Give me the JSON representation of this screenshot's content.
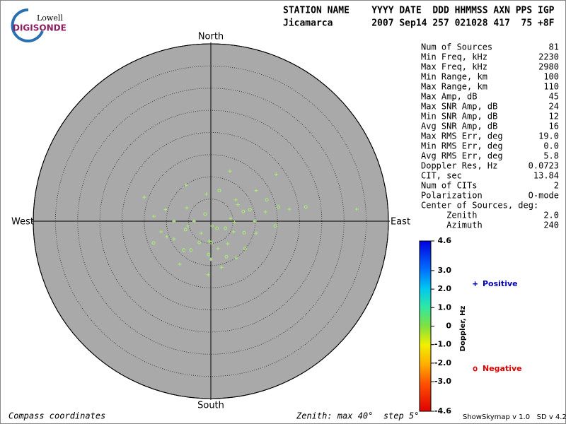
{
  "logo": {
    "top": "Lowell",
    "bottom": "DIGISONDE"
  },
  "header": {
    "labels": "STATION NAME    YYYY DATE  DDD HHMMSS AXN PPS IGP",
    "values": "Jicamarca       2007 Sep14 257 021028 417  75 +8F"
  },
  "stats": [
    [
      "Num of Sources",
      "81"
    ],
    [
      "Min Freq, kHz",
      "2230"
    ],
    [
      "Max Freq, kHz",
      "2980"
    ],
    [
      "Min Range, km",
      "100"
    ],
    [
      "Max Range, km",
      "110"
    ],
    [
      "Max Amp, dB",
      "45"
    ],
    [
      "Max SNR Amp, dB",
      "24"
    ],
    [
      "Min SNR Amp, dB",
      "12"
    ],
    [
      "Avg SNR Amp, dB",
      "16"
    ],
    [
      "Max RMS Err, deg",
      "19.0"
    ],
    [
      "Min RMS Err, deg",
      "0.0"
    ],
    [
      "Avg RMS Err, deg",
      "5.8"
    ],
    [
      "Doppler Res, Hz",
      "0.0723"
    ],
    [
      "CIT, sec",
      "13.84"
    ],
    [
      "Num of CITs",
      "2"
    ],
    [
      "Polarization",
      "O-mode"
    ],
    [
      "Center of Sources, deg:",
      ""
    ],
    [
      "     Zenith",
      "2.0"
    ],
    [
      "     Azimuth",
      "240"
    ]
  ],
  "footer": {
    "left": "Compass coordinates",
    "middle": "Zenith: max 40°  step 5°",
    "right": "ShowSkymap v 1.0   SD v 4.2"
  },
  "chart_data": {
    "type": "skymap",
    "directions": {
      "north": "North",
      "south": "South",
      "east": "East",
      "west": "West"
    },
    "xlim": [
      -40,
      40
    ],
    "ylim": [
      -40,
      40
    ],
    "rings": [
      5,
      10,
      15,
      20,
      25,
      30,
      35,
      40
    ],
    "series": [
      {
        "name": "Positive",
        "marker": "+",
        "color": "#a8f070",
        "legend_color": "#0000c0",
        "x": [
          4.3,
          14.7,
          -5.6,
          -1.0,
          10.2,
          -15.0,
          5.6,
          6.1,
          12.3,
          17.7,
          32.9,
          -10.2,
          -5.4,
          -12.8,
          4.5,
          -3.8,
          -8.3,
          9.9,
          5.3,
          0.3,
          5.1,
          10.2,
          -5.1,
          -11.2,
          -9.9,
          -8.3,
          -2.2,
          -0.3,
          3.8,
          1.6,
          5.7,
          -7.0,
          0.0,
          2.4,
          -0.6
        ],
        "values": [
          11.3,
          10.6,
          8.1,
          6.1,
          6.9,
          5.4,
          4.8,
          3.7,
          2.1,
          2.7,
          2.7,
          2.6,
          3.0,
          1.1,
          0.6,
          0.0,
          0.0,
          0.0,
          -0.2,
          -1.1,
          -2.4,
          -2.7,
          -1.1,
          -2.4,
          -3.5,
          -4.0,
          -2.7,
          -4.5,
          -5.1,
          -6.2,
          -8.3,
          -9.7,
          -8.6,
          -10.4,
          -12.1
        ]
      },
      {
        "name": "Negative",
        "marker": "o",
        "color": "#a8f070",
        "legend_color": "#e00000",
        "x": [
          1.9,
          12.6,
          8.8,
          7.3,
          15.2,
          21.4,
          -1.3,
          1.4,
          3.3,
          7.5,
          14.5,
          -5.7,
          -12.9,
          -2.6,
          0.0,
          7.7,
          -6.1,
          -4.5,
          -0.5,
          3.5
        ],
        "values": [
          6.9,
          4.8,
          2.6,
          2.2,
          3.2,
          3.2,
          1.6,
          -1.6,
          -1.6,
          -2.6,
          -1.1,
          -1.9,
          -4.9,
          -4.8,
          -4.8,
          -6.2,
          -6.5,
          -6.5,
          -7.5,
          -8.0
        ]
      }
    ],
    "colorbar": {
      "label": "Doppler, Hz",
      "lim": [
        -4.6,
        4.6
      ],
      "ticks": [
        4.6,
        {
          "value": 3,
          "label": "3.0"
        },
        {
          "value": 2,
          "label": "2.0"
        },
        {
          "value": 1,
          "label": "1.0"
        },
        0,
        {
          "value": -1,
          "label": "-1.0"
        },
        {
          "value": -2,
          "label": "-2.0"
        },
        {
          "value": -3,
          "label": "-3.0"
        },
        -4.6
      ]
    }
  }
}
